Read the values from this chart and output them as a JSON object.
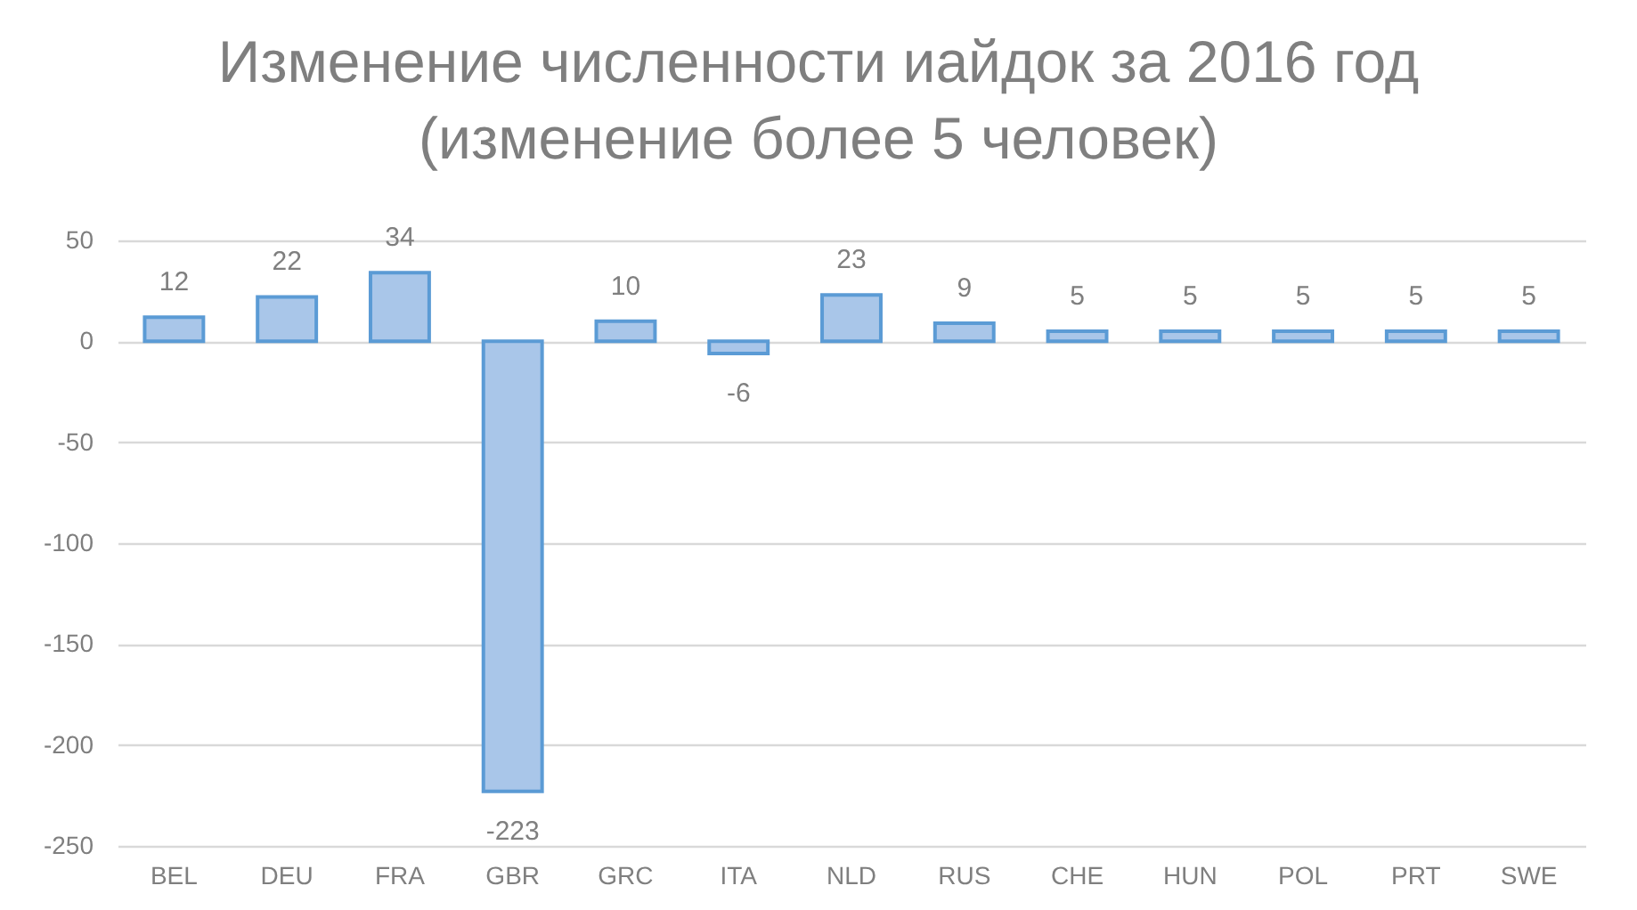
{
  "chart_data": {
    "type": "bar",
    "title": "Изменение численности иайдок за 2016 год\n(изменение более 5 человек)",
    "categories": [
      "BEL",
      "DEU",
      "FRA",
      "GBR",
      "GRC",
      "ITA",
      "NLD",
      "RUS",
      "CHE",
      "HUN",
      "POL",
      "PRT",
      "SWE"
    ],
    "values": [
      12,
      22,
      34,
      -223,
      10,
      -6,
      23,
      9,
      5,
      5,
      5,
      5,
      5
    ],
    "color": "#a9c6e9",
    "ylim": [
      -250,
      50
    ],
    "yticks": [
      -250,
      -200,
      -150,
      -100,
      -50,
      0,
      50
    ],
    "grid": "y",
    "data_labels": true
  }
}
